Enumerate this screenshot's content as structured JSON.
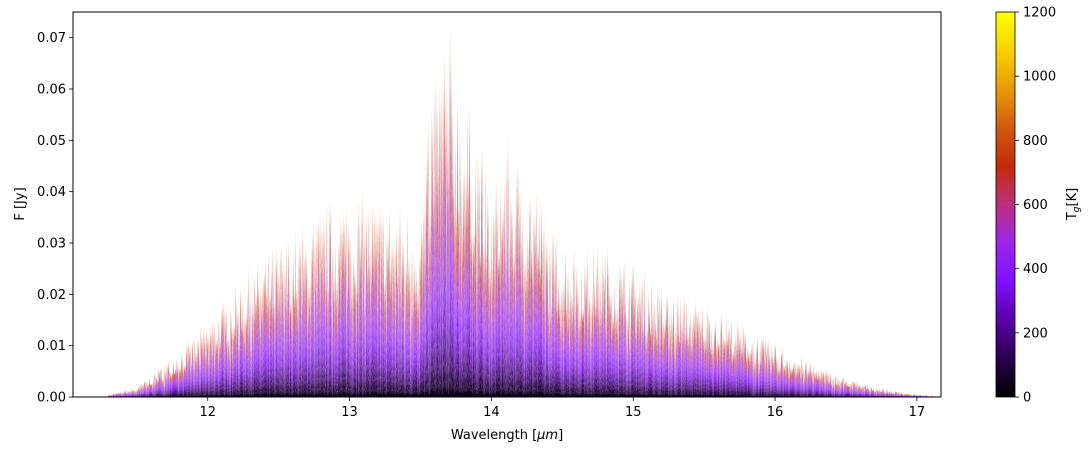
{
  "chart_data": {
    "type": "area",
    "xlabel": "Wavelength [",
    "xlabel_unit": "μm",
    "xlabel_end": "]",
    "ylabel": "F [Jy]",
    "xlim": [
      11.05,
      17.17
    ],
    "ylim": [
      0.0,
      0.075
    ],
    "x_ticks": [
      12,
      13,
      14,
      15,
      16,
      17
    ],
    "y_ticks": [
      0.0,
      0.01,
      0.02,
      0.03,
      0.04,
      0.05,
      0.06,
      0.07
    ],
    "colorbar": {
      "label_main": "T",
      "label_sub": "g",
      "label_end": "[K]",
      "range": [
        0,
        1200
      ],
      "ticks": [
        0,
        200,
        400,
        600,
        800,
        1000,
        1200
      ],
      "colormap": "gnuplot",
      "stops": [
        "#000000",
        "#2a004d",
        "#5a00a8",
        "#8010ff",
        "#9d25ea",
        "#bb2f7e",
        "#c32b08",
        "#d05a10",
        "#e89a08",
        "#f8d200",
        "#ffff00"
      ]
    },
    "envelope": {
      "x": [
        11.3,
        11.5,
        11.7,
        11.9,
        12.1,
        12.3,
        12.5,
        12.7,
        12.9,
        13.1,
        13.3,
        13.5,
        13.6,
        13.7,
        13.8,
        13.9,
        14.0,
        14.1,
        14.2,
        14.3,
        14.4,
        14.6,
        14.8,
        15.0,
        15.2,
        15.4,
        15.6,
        15.8,
        16.0,
        16.2,
        16.4,
        16.6,
        16.8,
        17.0,
        17.15
      ],
      "peak": [
        0.0005,
        0.002,
        0.007,
        0.012,
        0.019,
        0.026,
        0.031,
        0.035,
        0.04,
        0.041,
        0.039,
        0.037,
        0.068,
        0.074,
        0.06,
        0.055,
        0.04,
        0.052,
        0.047,
        0.045,
        0.034,
        0.03,
        0.03,
        0.027,
        0.022,
        0.02,
        0.018,
        0.014,
        0.011,
        0.008,
        0.005,
        0.003,
        0.0015,
        0.0005,
        0.0001
      ]
    },
    "temperature_layers_K": [
      50,
      100,
      150,
      200,
      250,
      300,
      350,
      400,
      450,
      500,
      550,
      600,
      650,
      700,
      750
    ]
  }
}
